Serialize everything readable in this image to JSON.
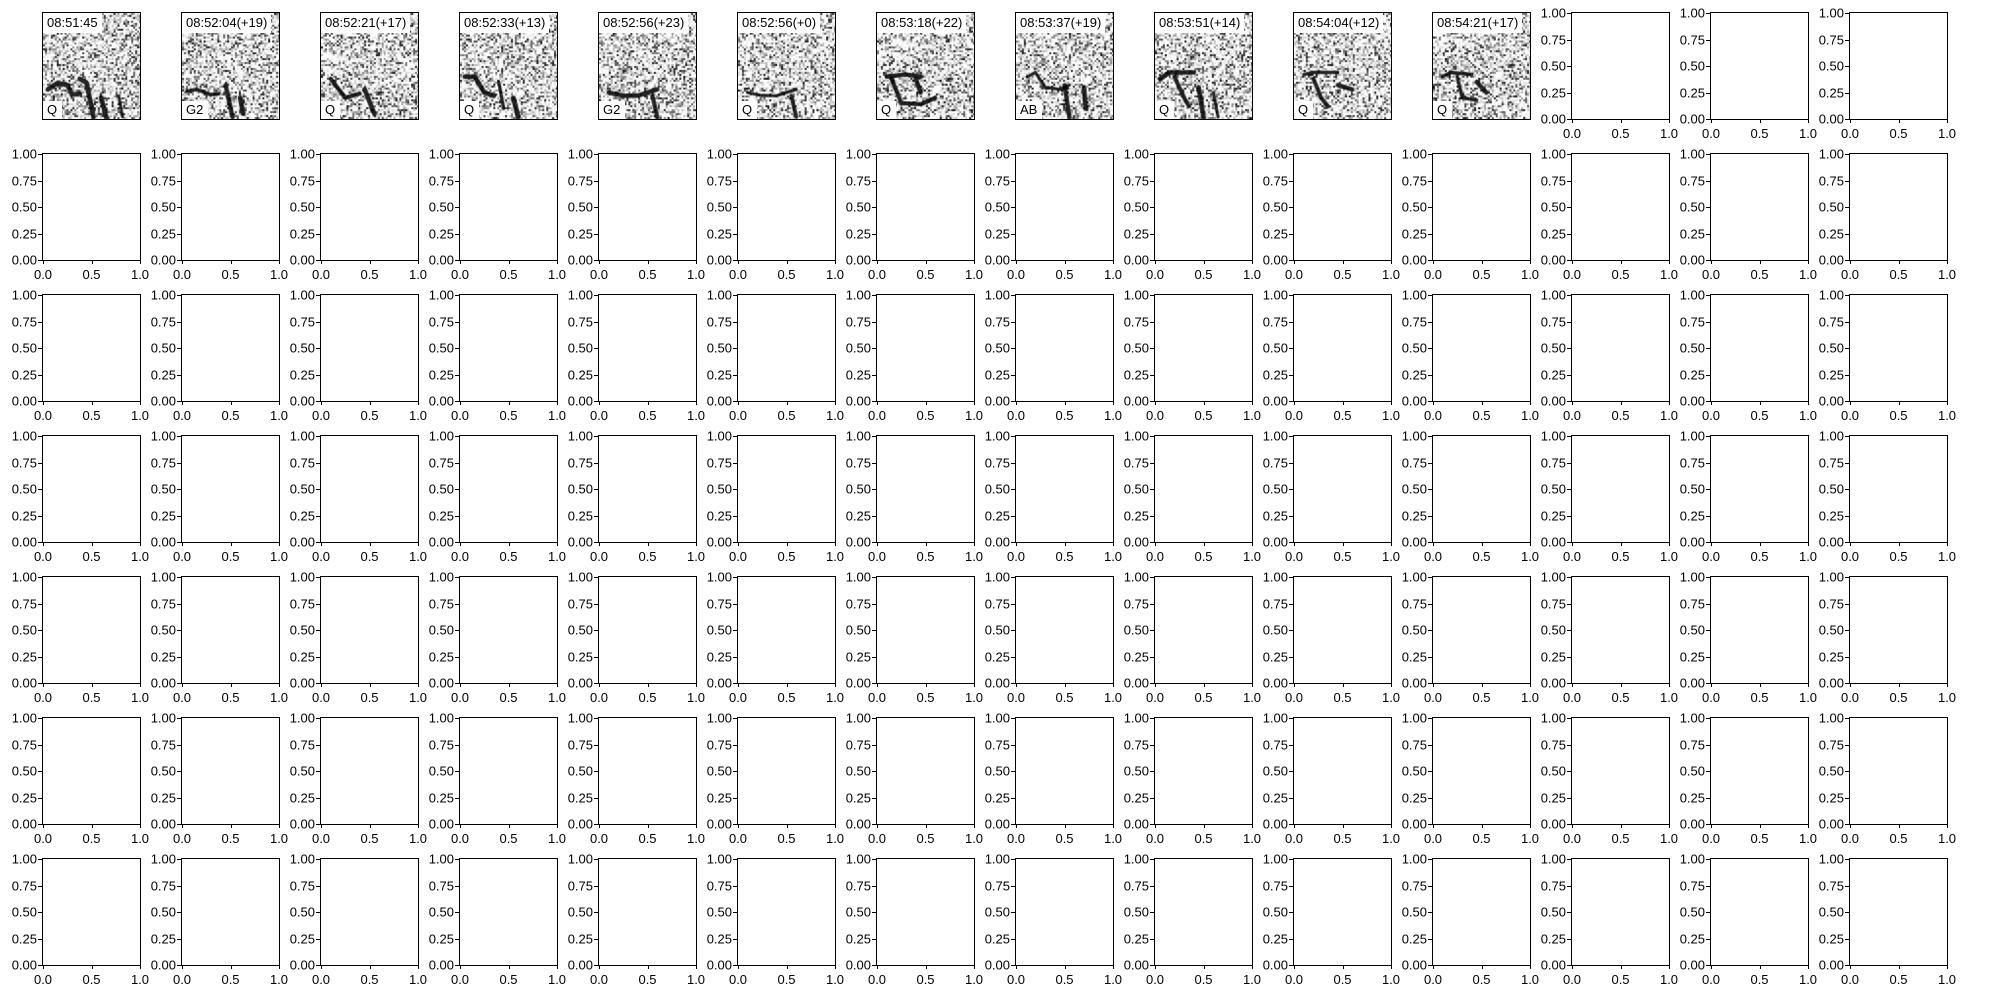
{
  "chart_data": {
    "type": "heatmap",
    "grid": {
      "rows": 7,
      "cols": 14
    },
    "colormap": "gray_r",
    "panels": [
      {
        "title": "08:51:45",
        "label": "Q"
      },
      {
        "title": "08:52:04(+19)",
        "label": "G2"
      },
      {
        "title": "08:52:21(+17)",
        "label": "Q"
      },
      {
        "title": "08:52:33(+13)",
        "label": "Q"
      },
      {
        "title": "08:52:56(+23)",
        "label": "G2"
      },
      {
        "title": "08:52:56(+0)",
        "label": "Q"
      },
      {
        "title": "08:53:18(+22)",
        "label": "Q"
      },
      {
        "title": "08:53:37(+19)",
        "label": "AB"
      },
      {
        "title": "08:53:51(+14)",
        "label": "Q"
      },
      {
        "title": "08:54:04(+12)",
        "label": "Q"
      },
      {
        "title": "08:54:21(+17)",
        "label": "Q"
      }
    ],
    "empty_axes": {
      "xlim": [
        0,
        1
      ],
      "ylim": [
        0,
        1
      ],
      "x_tick_labels": [
        "0.0",
        "0.5",
        "1.0"
      ],
      "y_tick_labels": [
        "0.00",
        "0.25",
        "0.50",
        "0.75",
        "1.00"
      ]
    }
  }
}
